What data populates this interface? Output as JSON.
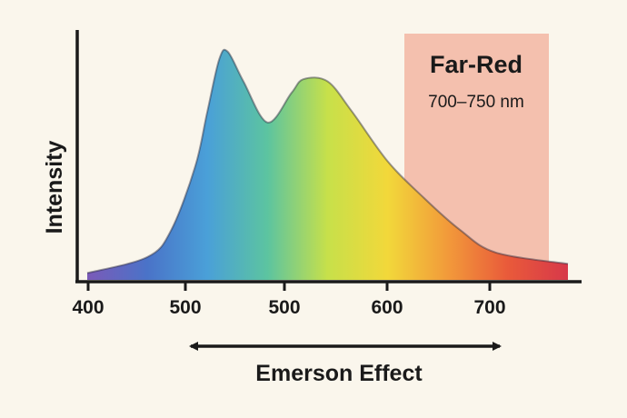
{
  "chart_data": {
    "type": "area",
    "xlabel": "Emerson Effect",
    "ylabel": "Intensity",
    "x_tick_labels": [
      "400",
      "500",
      "500",
      "600",
      "700"
    ],
    "series": [
      {
        "x": [
          400,
          440,
          460,
          480,
          490,
          500,
          507,
          520,
          540,
          560,
          570,
          590,
          610,
          640,
          670,
          700,
          730,
          770
        ],
        "y": [
          0.03,
          0.1,
          0.22,
          0.5,
          0.74,
          0.97,
          1.0,
          0.87,
          0.69,
          0.82,
          0.88,
          0.87,
          0.74,
          0.52,
          0.36,
          0.22,
          0.12,
          0.07
        ]
      }
    ],
    "xlim": [
      390,
      790
    ],
    "ylim": [
      0,
      1.1
    ],
    "grid": false,
    "highlight_band": {
      "label": "Far-Red",
      "range_label": "700–750 nm",
      "color": "#f2b6a3"
    },
    "arrow": {
      "direction": "both",
      "from_x": 500,
      "to_x": 700
    },
    "gradient_colors": [
      "#7b5ab8",
      "#4a73c8",
      "#4aa0d8",
      "#5cc4a0",
      "#c7e04a",
      "#f2d83a",
      "#f29a3a",
      "#e95a3a",
      "#d7384a"
    ],
    "axis_color": "#1a1a1a"
  }
}
